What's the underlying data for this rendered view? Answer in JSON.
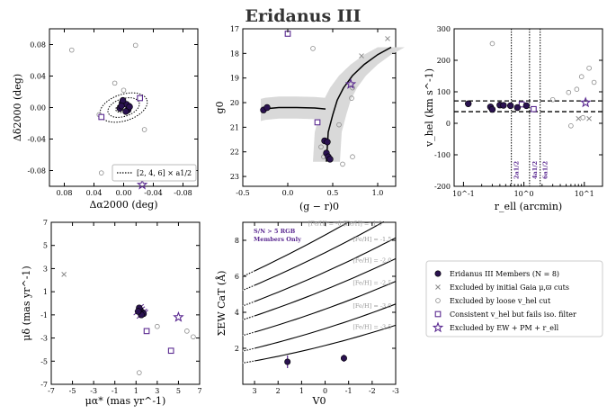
{
  "title": "Eridanus III",
  "colors": {
    "member": "#2a1250",
    "accent": "#5b2a91",
    "grey": "#8a8a8a",
    "band": "#d9d9d9"
  },
  "legend": {
    "items": [
      {
        "label": "Eridanus III Members (N = 8)",
        "marker": "filled-circle"
      },
      {
        "label": "Excluded by initial Gaia μ,ϖ cuts",
        "marker": "cross"
      },
      {
        "label": "Excluded by loose v_hel cut",
        "marker": "open-circle"
      },
      {
        "label": "Consistent v_hel but fails iso. filter",
        "marker": "open-square"
      },
      {
        "label": "Excluded by EW + PM + r_ell",
        "marker": "open-star"
      }
    ]
  },
  "chart_data": [
    {
      "type": "scatter",
      "name": "spatial",
      "xlabel": "Δα2000 (deg)",
      "ylabel": "Δδ2000 (deg)",
      "xlim": [
        0.1,
        -0.1
      ],
      "ylim": [
        -0.1,
        0.1
      ],
      "xticks": [
        "0.08",
        "0.04",
        "0.00",
        "-0.04",
        "-0.08"
      ],
      "yticks": [
        "0.08",
        "0.04",
        "0.00",
        "-0.04",
        "-0.08"
      ],
      "legend_label": "[2, 4, 6] × a1/2",
      "ellipse_scales": [
        2,
        4,
        6
      ],
      "members": [
        [
          0.002,
          0.006
        ],
        [
          0.005,
          -0.001
        ],
        [
          -0.004,
          0.004
        ],
        [
          -0.006,
          -0.003
        ],
        [
          0.001,
          0.009
        ],
        [
          0.003,
          0.002
        ],
        [
          -0.003,
          -0.005
        ],
        [
          -0.008,
          0.001
        ]
      ],
      "excluded_vhel": [
        [
          0.07,
          0.073
        ],
        [
          0.012,
          0.031
        ],
        [
          -0.016,
          0.079
        ],
        [
          0.033,
          -0.009
        ],
        [
          -0.028,
          -0.028
        ],
        [
          0.03,
          -0.083
        ],
        [
          0.0,
          0.022
        ]
      ],
      "excluded_iso": [
        [
          0.03,
          -0.012
        ],
        [
          -0.022,
          0.012
        ]
      ],
      "excluded_ewpm": [
        [
          -0.025,
          -0.098
        ]
      ]
    },
    {
      "type": "scatter",
      "name": "cmd",
      "xlabel": "(g − r)0",
      "ylabel": "g0",
      "xlim": [
        -0.5,
        1.2
      ],
      "ylim": [
        23.4,
        17
      ],
      "xticks": [
        "-0.5",
        "0.0",
        "0.5",
        "1.0"
      ],
      "yticks": [
        "17",
        "18",
        "19",
        "20",
        "21",
        "22",
        "23"
      ],
      "isochrone": [
        [
          -0.3,
          20.3
        ],
        [
          -0.25,
          20.25
        ],
        [
          -0.1,
          20.2
        ],
        [
          0.1,
          20.2
        ],
        [
          0.3,
          20.22
        ],
        [
          0.42,
          20.26
        ]
      ],
      "isochrone_rgb": [
        [
          0.43,
          22.4
        ],
        [
          0.45,
          21.2
        ],
        [
          0.5,
          20.5
        ],
        [
          0.55,
          19.9
        ],
        [
          0.62,
          19.4
        ],
        [
          0.72,
          18.9
        ],
        [
          0.85,
          18.45
        ],
        [
          1.0,
          18.05
        ],
        [
          1.15,
          17.75
        ]
      ],
      "members": [
        [
          -0.27,
          20.3
        ],
        [
          -0.23,
          20.2
        ],
        [
          0.41,
          21.55
        ],
        [
          0.44,
          21.6
        ],
        [
          0.43,
          22.05
        ],
        [
          0.45,
          22.2
        ],
        [
          0.47,
          22.3
        ]
      ],
      "excluded_gaia": [
        [
          1.11,
          17.4
        ],
        [
          0.82,
          18.1
        ]
      ],
      "excluded_vhel": [
        [
          0.28,
          17.8
        ],
        [
          0.72,
          19.4
        ],
        [
          0.71,
          19.82
        ],
        [
          0.57,
          20.9
        ],
        [
          0.37,
          21.8
        ],
        [
          0.4,
          22.2
        ],
        [
          0.72,
          22.2
        ],
        [
          0.61,
          22.5
        ]
      ],
      "excluded_iso": [
        [
          0.0,
          17.2
        ],
        [
          0.33,
          20.8
        ]
      ],
      "excluded_ewpm": [
        [
          0.7,
          19.25
        ]
      ]
    },
    {
      "type": "scatter",
      "name": "velocity",
      "xlabel": "r_ell (arcmin)",
      "ylabel": "v_hel (km s^-1)",
      "xscale": "log",
      "xlim": [
        0.07,
        20
      ],
      "ylim": [
        -200,
        300
      ],
      "xticks": [
        "10^-1",
        "10^0",
        "10^1"
      ],
      "yticks": [
        "300",
        "200",
        "100",
        "0",
        "-100",
        "-200"
      ],
      "hlines": [
        71,
        37
      ],
      "vlines": [
        {
          "x": 0.62,
          "label": "2a1/2"
        },
        {
          "x": 1.24,
          "label": "4a1/2"
        },
        {
          "x": 1.86,
          "label": "6a1/2"
        }
      ],
      "members": [
        [
          0.12,
          62
        ],
        [
          0.28,
          52
        ],
        [
          0.3,
          44
        ],
        [
          0.4,
          58
        ],
        [
          0.46,
          57
        ],
        [
          0.6,
          56
        ],
        [
          0.78,
          50
        ],
        [
          1.1,
          56
        ]
      ],
      "excluded_gaia": [
        [
          8.0,
          15
        ],
        [
          12.0,
          15
        ]
      ],
      "excluded_vhel": [
        [
          0.3,
          253
        ],
        [
          3.0,
          75
        ],
        [
          5.5,
          98
        ],
        [
          6.0,
          -8
        ],
        [
          7.5,
          108
        ],
        [
          9.0,
          148
        ],
        [
          9.5,
          18
        ],
        [
          12.0,
          175
        ],
        [
          14.5,
          130
        ]
      ],
      "excluded_iso": [
        [
          1.45,
          45
        ],
        [
          0.92,
          60
        ]
      ],
      "excluded_ewpm": [
        [
          10.5,
          66
        ]
      ]
    },
    {
      "type": "scatter",
      "name": "proper-motion",
      "xlabel": "μα* (mas yr^-1)",
      "ylabel": "μδ (mas yr^-1)",
      "xlim": [
        -7,
        7
      ],
      "ylim": [
        -7,
        7
      ],
      "xticks": [
        "-7",
        "-5",
        "-3",
        "-1",
        "1",
        "3",
        "5",
        "7"
      ],
      "yticks": [
        "7",
        "5",
        "3",
        "1",
        "-1",
        "-3",
        "-5",
        "-7"
      ],
      "members": [
        [
          1.4,
          -0.6
        ],
        [
          1.6,
          -0.8
        ],
        [
          1.3,
          -0.4
        ],
        [
          1.7,
          -0.9
        ],
        [
          1.5,
          -1.0
        ],
        [
          1.2,
          -0.7
        ]
      ],
      "excluded_gaia": [
        [
          -5.8,
          2.5
        ]
      ],
      "excluded_vhel": [
        [
          1.3,
          -6.0
        ],
        [
          3.0,
          -2.0
        ],
        [
          5.8,
          -2.4
        ],
        [
          6.4,
          -2.9
        ]
      ],
      "excluded_iso": [
        [
          2.0,
          -2.4
        ],
        [
          4.3,
          -4.1
        ]
      ],
      "excluded_ewpm": [
        [
          5.0,
          -1.2
        ]
      ]
    },
    {
      "type": "line",
      "name": "calcium-triplet",
      "xlabel": "V0",
      "ylabel": "ΣEW CaT (Å)",
      "xlim": [
        3.5,
        -3
      ],
      "ylim": [
        0,
        9
      ],
      "xticks": [
        "3",
        "2",
        "1",
        "0",
        "-1",
        "-2",
        "-3"
      ],
      "yticks": [
        "2",
        "4",
        "6",
        "8"
      ],
      "annotation": [
        "S/N > 5 RGB",
        "Members Only"
      ],
      "series": [
        {
          "name": "[Fe/H] = -0.5",
          "at_v3": 6.3,
          "slope": 0.62
        },
        {
          "name": "[Fe/H] = -1.0",
          "at_v3": 5.5,
          "slope": 0.56
        },
        {
          "name": "[Fe/H] = -1.5",
          "at_v3": 4.6,
          "slope": 0.5
        },
        {
          "name": "[Fe/H] = -2.0",
          "at_v3": 3.8,
          "slope": 0.44
        },
        {
          "name": "[Fe/H] = -2.5",
          "at_v3": 2.9,
          "slope": 0.38
        },
        {
          "name": "[Fe/H] = -3.0",
          "at_v3": 2.0,
          "slope": 0.32
        },
        {
          "name": "[Fe/H] = -3.5",
          "at_v3": 1.3,
          "slope": 0.24
        }
      ],
      "members": [
        {
          "v": 1.6,
          "ew": 1.25,
          "err": 0.35
        },
        {
          "v": -0.8,
          "ew": 1.45,
          "err": 0.2
        }
      ]
    }
  ]
}
